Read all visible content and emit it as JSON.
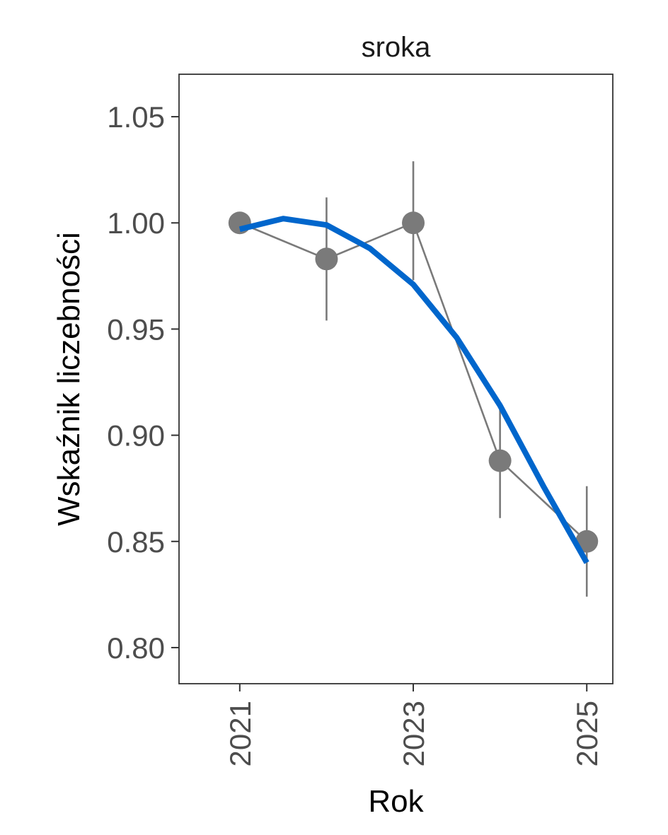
{
  "chart_data": {
    "type": "line",
    "title": "sroka",
    "xlabel": "Rok",
    "ylabel": "Wskaźnik liczebności",
    "x": [
      2021,
      2022,
      2023,
      2024,
      2025
    ],
    "x_ticks": [
      "2021",
      "2023",
      "2025"
    ],
    "y_ticks": [
      "0.80",
      "0.85",
      "0.90",
      "0.95",
      "1.00",
      "1.05"
    ],
    "xlim": [
      2020.3,
      2025.3
    ],
    "ylim": [
      0.783,
      1.07
    ],
    "grid": false,
    "series": [
      {
        "type": "line+points",
        "values": [
          1.0,
          0.983,
          1.0,
          0.888,
          0.85
        ],
        "lower": [
          1.0,
          0.954,
          0.973,
          0.861,
          0.824
        ],
        "upper": [
          1.0,
          1.012,
          1.029,
          0.915,
          0.876
        ],
        "color": "#7a7a7a"
      },
      {
        "type": "trend",
        "x": [
          2021,
          2021.5,
          2022,
          2022.5,
          2023,
          2023.5,
          2024,
          2024.5,
          2025
        ],
        "values": [
          0.997,
          1.002,
          0.999,
          0.988,
          0.971,
          0.946,
          0.914,
          0.876,
          0.84
        ],
        "color": "#0066cc"
      }
    ]
  }
}
